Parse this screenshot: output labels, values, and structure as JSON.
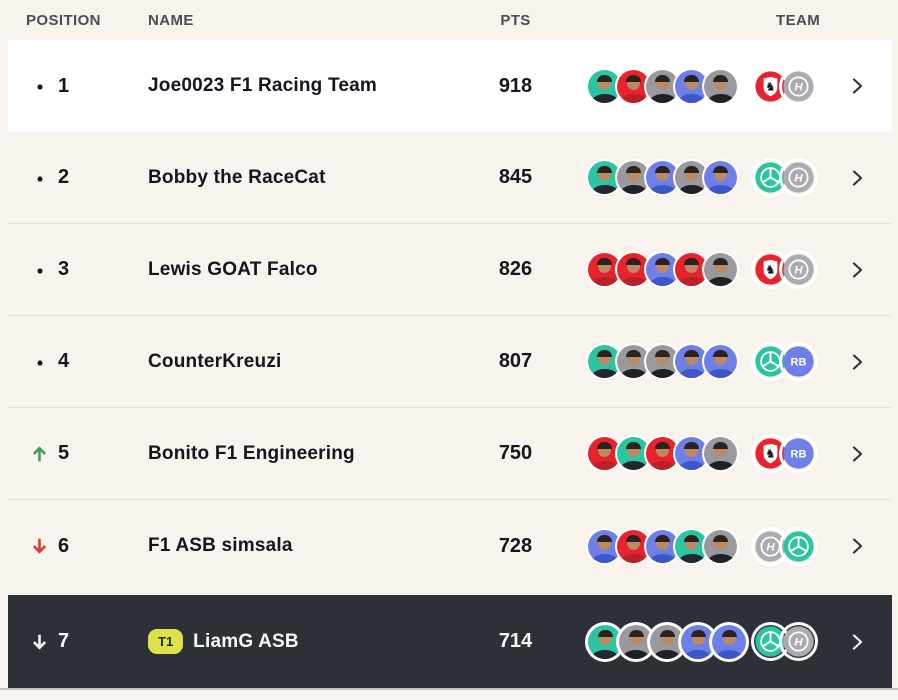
{
  "header": {
    "position": "POSITION",
    "name": "NAME",
    "pts": "PTS",
    "team": "TEAM"
  },
  "colors": {
    "page_bg": "#f8f3ec",
    "row_white": "#ffffff",
    "row_dark": "#2e3038",
    "up_arrow": "#3f9e5a",
    "down_arrow": "#d93a31",
    "tag_bg": "#dde24a",
    "avatar_bg": {
      "teal": "#2cc5a2",
      "red": "#e8232e",
      "gray": "#9a9a9e",
      "blue": "#6e80e8"
    },
    "avatar_suit": {
      "teal": "#23262e",
      "red": "#b8202a",
      "gray": "#1f2126",
      "blue": "#3d57c8"
    },
    "badge_bg": {
      "ferrari": "#e8232e",
      "haas": "#aaacb2",
      "mercedes": "#2cc5a2",
      "racingbulls": "#6e80e8"
    }
  },
  "rows": [
    {
      "position": "1",
      "trend": "same",
      "tag": "",
      "name": "Joe0023 F1 Racing Team",
      "pts": "918",
      "drivers": [
        "teal",
        "red",
        "gray",
        "blue",
        "gray"
      ],
      "badges": [
        "ferrari",
        "haas"
      ],
      "selected": false
    },
    {
      "position": "2",
      "trend": "same",
      "tag": "",
      "name": "Bobby the RaceCat",
      "pts": "845",
      "drivers": [
        "teal",
        "gray",
        "blue",
        "gray",
        "blue"
      ],
      "badges": [
        "mercedes",
        "haas"
      ],
      "selected": false
    },
    {
      "position": "3",
      "trend": "same",
      "tag": "",
      "name": "Lewis GOAT Falco",
      "pts": "826",
      "drivers": [
        "red",
        "red",
        "blue",
        "red",
        "gray"
      ],
      "badges": [
        "ferrari",
        "haas"
      ],
      "selected": false
    },
    {
      "position": "4",
      "trend": "same",
      "tag": "",
      "name": "CounterKreuzi",
      "pts": "807",
      "drivers": [
        "teal",
        "gray",
        "gray",
        "blue",
        "blue"
      ],
      "badges": [
        "mercedes",
        "racingbulls"
      ],
      "selected": false
    },
    {
      "position": "5",
      "trend": "up",
      "tag": "",
      "name": "Bonito F1 Engineering",
      "pts": "750",
      "drivers": [
        "red",
        "teal",
        "red",
        "blue",
        "gray"
      ],
      "badges": [
        "ferrari",
        "racingbulls"
      ],
      "selected": false
    },
    {
      "position": "6",
      "trend": "down",
      "tag": "",
      "name": "F1 ASB simsala",
      "pts": "728",
      "drivers": [
        "blue",
        "red",
        "blue",
        "teal",
        "gray"
      ],
      "badges": [
        "haas",
        "mercedes"
      ],
      "selected": false
    },
    {
      "position": "7",
      "trend": "down",
      "tag": "T1",
      "name": "LiamG ASB",
      "pts": "714",
      "drivers": [
        "teal",
        "gray",
        "gray",
        "blue",
        "blue"
      ],
      "badges": [
        "mercedes",
        "haas"
      ],
      "selected": true
    }
  ]
}
